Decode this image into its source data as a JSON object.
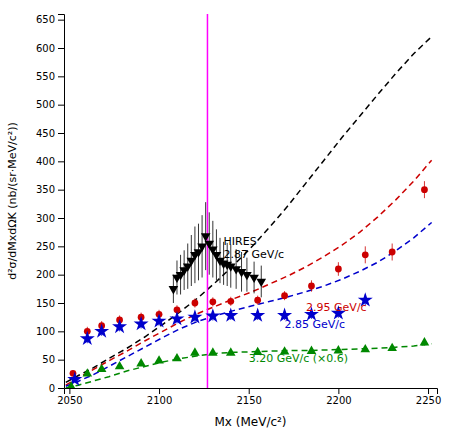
{
  "chart_data": {
    "type": "scatter",
    "x_label": "Mx (MeV/c²)",
    "y_label": "d²σ/dMxdΩK (nb/(sr·MeV/c²))",
    "xlim": [
      2047,
      2255
    ],
    "ylim": [
      0,
      660
    ],
    "xticks": [
      2050,
      2100,
      2150,
      2200,
      2250
    ],
    "yticks": [
      0,
      50,
      100,
      150,
      200,
      250,
      300,
      350,
      400,
      450,
      500,
      550,
      600,
      650
    ],
    "grid": false,
    "series": [
      {
        "type": "line",
        "line_style": "dashed",
        "color": "#000000",
        "x": [
          2048,
          2055,
          2063,
          2072,
          2082,
          2092,
          2102,
          2112,
          2122,
          2132,
          2142,
          2152,
          2162,
          2172,
          2182,
          2192,
          2202,
          2212,
          2222,
          2232,
          2242,
          2252
        ],
        "values": [
          10,
          22,
          35,
          52,
          70,
          90,
          112,
          135,
          160,
          188,
          218,
          250,
          285,
          322,
          362,
          402,
          442,
          480,
          518,
          555,
          590,
          620
        ]
      },
      {
        "type": "line",
        "line_style": "dashed",
        "color": "#cc0000",
        "x": [
          2048,
          2055,
          2063,
          2072,
          2082,
          2092,
          2102,
          2112,
          2122,
          2132,
          2142,
          2152,
          2162,
          2172,
          2182,
          2192,
          2202,
          2212,
          2222,
          2232,
          2242,
          2252
        ],
        "values": [
          5,
          18,
          32,
          48,
          65,
          83,
          100,
          117,
          132,
          145,
          158,
          170,
          184,
          198,
          214,
          232,
          252,
          275,
          302,
          332,
          365,
          402
        ]
      },
      {
        "type": "line",
        "line_style": "dashed",
        "color": "#0000cc",
        "x": [
          2048,
          2055,
          2063,
          2072,
          2082,
          2092,
          2102,
          2112,
          2122,
          2132,
          2142,
          2152,
          2162,
          2172,
          2182,
          2192,
          2202,
          2212,
          2222,
          2232,
          2242,
          2252
        ],
        "values": [
          3,
          12,
          23,
          38,
          55,
          72,
          89,
          105,
          118,
          128,
          137,
          145,
          153,
          161,
          170,
          180,
          192,
          206,
          222,
          242,
          265,
          292
        ]
      },
      {
        "type": "line",
        "line_style": "dashed",
        "color": "#008800",
        "x": [
          2048,
          2055,
          2063,
          2072,
          2082,
          2092,
          2102,
          2112,
          2122,
          2132,
          2142,
          2152,
          2162,
          2172,
          2182,
          2192,
          2202,
          2212,
          2222,
          2232,
          2242,
          2252
        ],
        "values": [
          0,
          5,
          12,
          20,
          30,
          38,
          46,
          52,
          57,
          61,
          63,
          64,
          65,
          66,
          66,
          67,
          68,
          69,
          70,
          72,
          74,
          78
        ]
      },
      {
        "type": "scatter",
        "marker": "triangle_down",
        "color": "#000000",
        "x": [
          2108,
          2110,
          2112,
          2114,
          2116,
          2118,
          2120,
          2122,
          2124,
          2126,
          2128,
          2130,
          2132,
          2134,
          2136,
          2138,
          2140,
          2143,
          2146,
          2149,
          2153,
          2157
        ],
        "values": [
          175,
          195,
          200,
          208,
          215,
          225,
          235,
          240,
          250,
          268,
          255,
          245,
          235,
          225,
          220,
          218,
          215,
          210,
          205,
          200,
          195,
          188
        ],
        "errors": [
          25,
          30,
          35,
          35,
          40,
          45,
          50,
          50,
          55,
          60,
          55,
          50,
          45,
          40,
          38,
          38,
          38,
          35,
          35,
          30,
          28,
          28
        ]
      },
      {
        "type": "scatter",
        "marker": "circle",
        "color": "#cc0000",
        "x": [
          2052,
          2060,
          2068,
          2078,
          2090,
          2100,
          2110,
          2120,
          2130,
          2140,
          2155,
          2170,
          2185,
          2200,
          2215,
          2230,
          2248
        ],
        "values": [
          26,
          100,
          110,
          120,
          125,
          130,
          138,
          150,
          152,
          153,
          155,
          163,
          180,
          210,
          235,
          240,
          350
        ],
        "errors": [
          5,
          8,
          8,
          8,
          8,
          8,
          8,
          8,
          8,
          8,
          8,
          8,
          10,
          12,
          15,
          15,
          15
        ]
      },
      {
        "type": "scatter",
        "marker": "star",
        "color": "#0000cc",
        "x": [
          2053,
          2060,
          2068,
          2078,
          2090,
          2100,
          2110,
          2120,
          2130,
          2140,
          2155,
          2170,
          2185,
          2200,
          2215
        ],
        "values": [
          15,
          87,
          100,
          108,
          113,
          118,
          122,
          125,
          127,
          128,
          128,
          128,
          130,
          132,
          155
        ],
        "errors": [
          5,
          8,
          8,
          8,
          8,
          8,
          8,
          8,
          8,
          8,
          8,
          8,
          8,
          8,
          10
        ]
      },
      {
        "type": "scatter",
        "marker": "triangle_up",
        "color": "#008800",
        "x": [
          2051,
          2060,
          2068,
          2078,
          2090,
          2100,
          2110,
          2120,
          2130,
          2140,
          2155,
          2170,
          2185,
          2200,
          2215,
          2230,
          2248
        ],
        "values": [
          2,
          25,
          33,
          38,
          43,
          48,
          52,
          62,
          62,
          62,
          63,
          64,
          65,
          66,
          68,
          70,
          80
        ],
        "errors": [
          2,
          4,
          4,
          4,
          4,
          4,
          4,
          4,
          4,
          4,
          4,
          4,
          4,
          4,
          4,
          4,
          5
        ]
      }
    ],
    "vlines": [
      {
        "x": 2127,
        "color": "#ff00ff"
      }
    ],
    "annotations": [
      {
        "text": "HIRES\n2.87 GeV/c",
        "x": 2136,
        "y": 268,
        "color": "#000000"
      },
      {
        "text": "2.95 GeV/c",
        "x": 2182,
        "y": 143,
        "color": "#cc0000"
      },
      {
        "text": "2.85 GeV/c",
        "x": 2170,
        "y": 112,
        "color": "#0000cc"
      },
      {
        "text": "3.20 GeV/c (×0.6)",
        "x": 2150,
        "y": 52,
        "color": "#008800"
      }
    ]
  }
}
